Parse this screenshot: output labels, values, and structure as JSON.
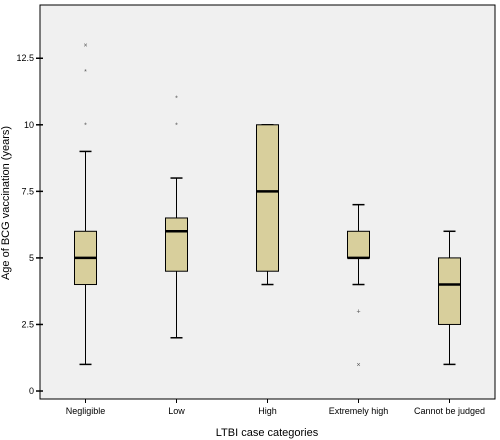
{
  "chart_data": {
    "type": "boxplot",
    "xlabel": "LTBI case categories",
    "ylabel": "Age of BCG vaccination (years)",
    "ylim": [
      -0.3,
      14.5
    ],
    "yticks": [
      "0",
      "2.5",
      "5",
      "7.5",
      "10",
      "12.5"
    ],
    "ytick_values": [
      0,
      2.5,
      5,
      7.5,
      10,
      12.5
    ],
    "grid": false,
    "box_color": "#d8cf9c",
    "background_color": "#f0f0f0",
    "categories": [
      "Negligible",
      "Low",
      "High",
      "Extremely high",
      "Cannot be judged"
    ],
    "boxes": [
      {
        "min": 1,
        "q1": 4,
        "median": 5,
        "q3": 6,
        "max": 9,
        "outliers": [
          {
            "value": 10,
            "marker": "*"
          },
          {
            "value": 12,
            "marker": "*"
          },
          {
            "value": 13,
            "marker": "×"
          }
        ]
      },
      {
        "min": 2,
        "q1": 4.5,
        "median": 6,
        "q3": 6.5,
        "max": 8,
        "outliers": [
          {
            "value": 10,
            "marker": "*"
          },
          {
            "value": 11,
            "marker": "*"
          }
        ]
      },
      {
        "min": 4,
        "q1": 4.5,
        "median": 7.5,
        "q3": 10,
        "max": 10,
        "outliers": []
      },
      {
        "min": 4,
        "q1": 5,
        "median": 5,
        "q3": 6,
        "max": 7,
        "outliers": [
          {
            "value": 1,
            "marker": "×"
          },
          {
            "value": 3,
            "marker": "+"
          }
        ]
      },
      {
        "min": 1,
        "q1": 2.5,
        "median": 4,
        "q3": 5,
        "max": 6,
        "outliers": []
      }
    ]
  }
}
